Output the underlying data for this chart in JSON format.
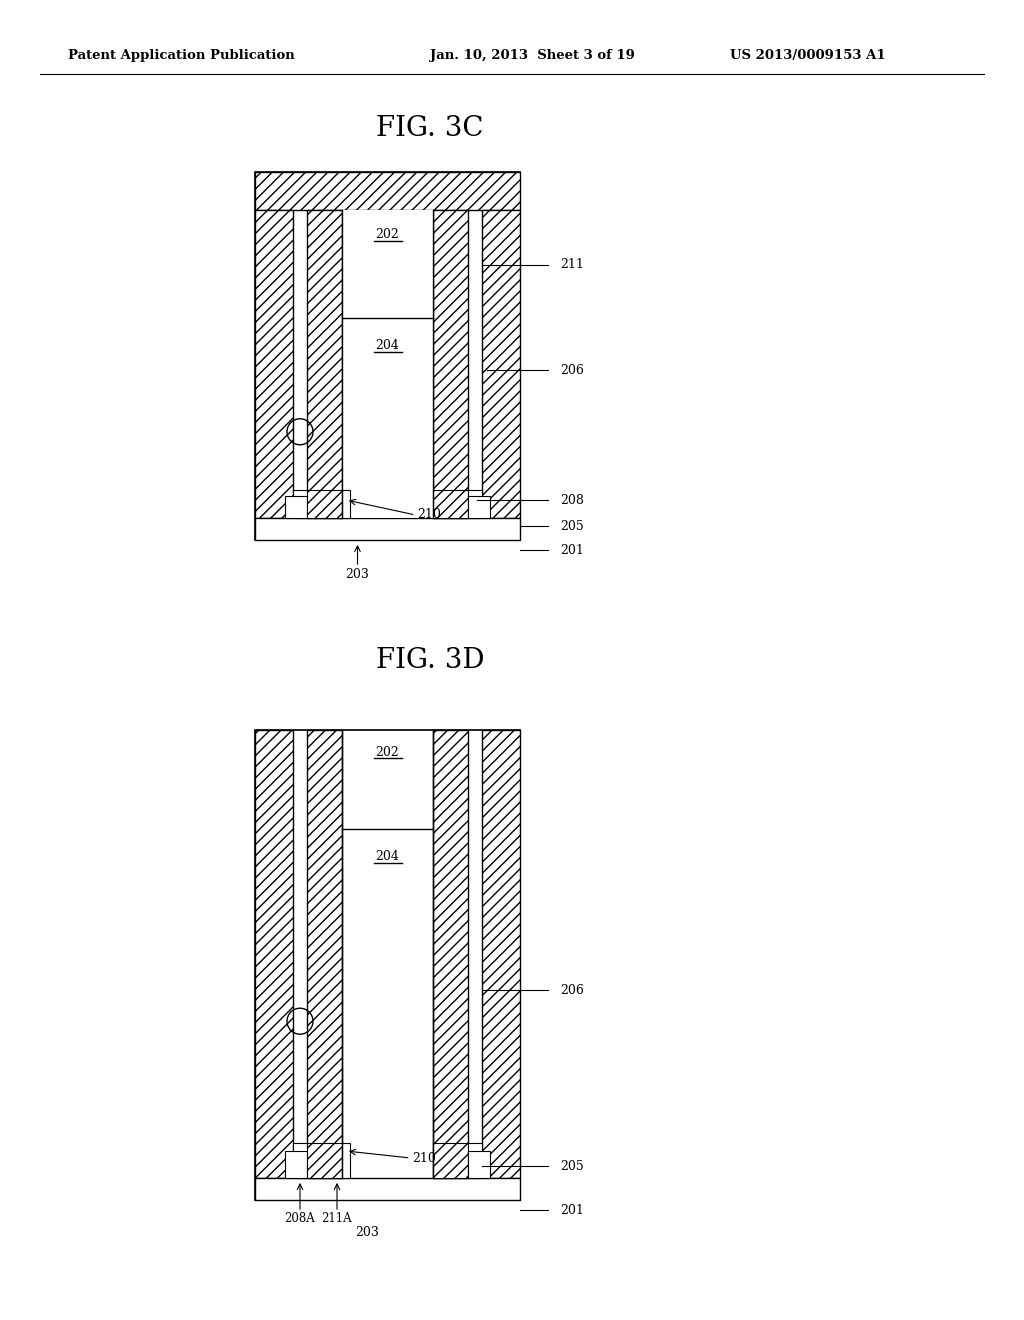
{
  "bg_color": "#ffffff",
  "header_left": "Patent Application Publication",
  "header_mid": "Jan. 10, 2013  Sheet 3 of 19",
  "header_right": "US 2013/0009153 A1",
  "fig3c_title": "FIG. 3C",
  "fig3d_title": "FIG. 3D"
}
